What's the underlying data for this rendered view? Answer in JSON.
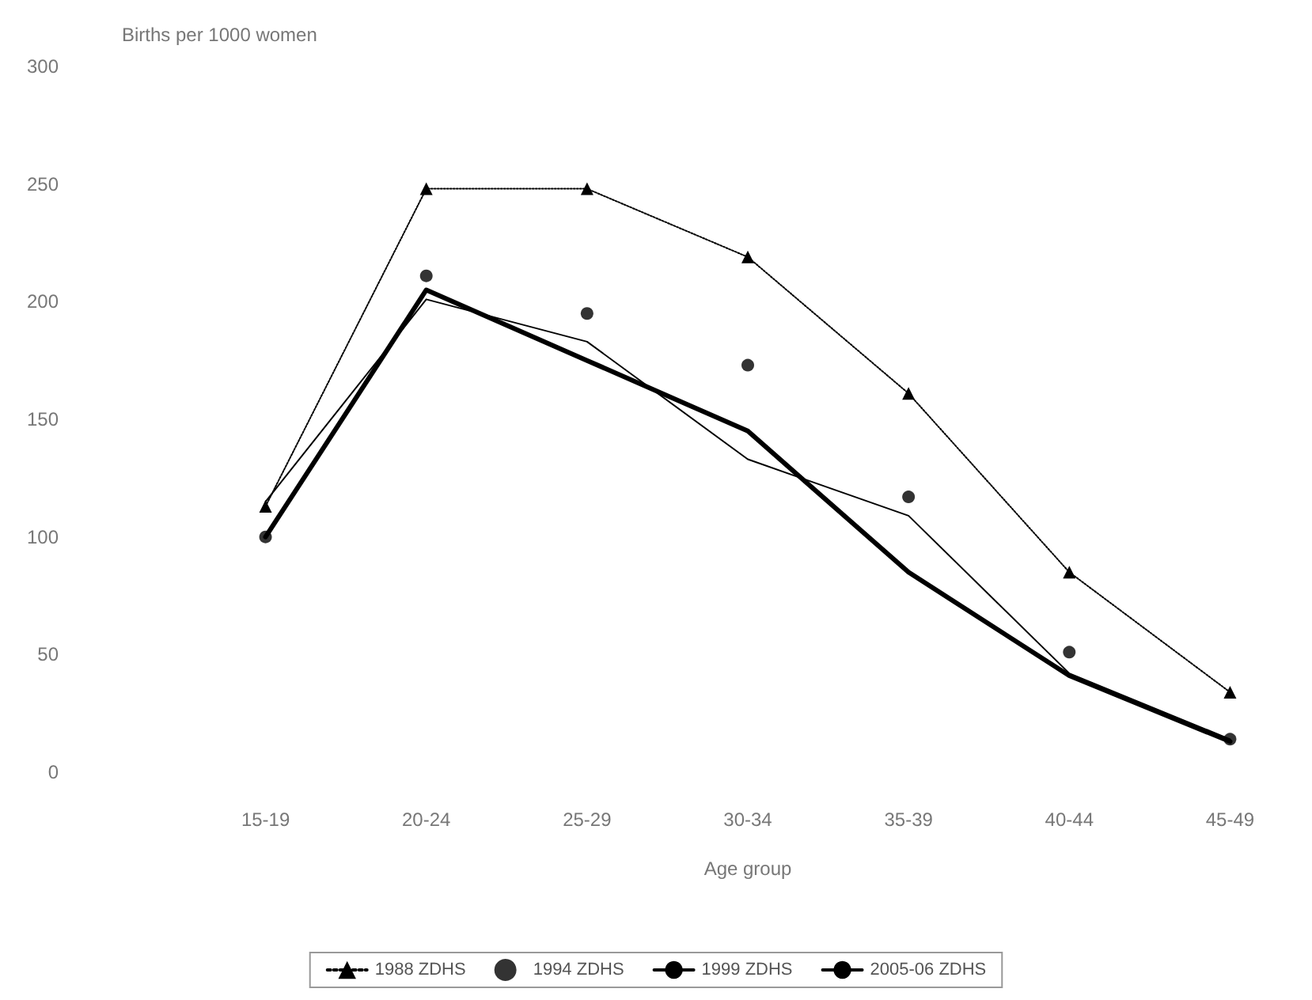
{
  "chart_data": {
    "type": "line",
    "ylabel": "Births per 1000 women",
    "xlabel": "Age group",
    "categories": [
      "15-19",
      "20-24",
      "25-29",
      "30-34",
      "35-39",
      "40-44",
      "45-49"
    ],
    "ylim": [
      0,
      300
    ],
    "yticks": [
      0,
      50,
      100,
      150,
      200,
      250,
      300
    ],
    "grid": false,
    "legend": "bottom",
    "series": [
      {
        "name": "1988 ZDHS",
        "color": "#000000",
        "marker": "triangle",
        "line_style": "dotted",
        "values": [
          113,
          248,
          248,
          219,
          161,
          85,
          34
        ]
      },
      {
        "name": "1994 ZDHS",
        "type": "scatter",
        "color": "#000000",
        "marker": "circle",
        "values": [
          100,
          211,
          195,
          173,
          117,
          51,
          14
        ]
      },
      {
        "name": "1999 ZDHS",
        "color": "#000000",
        "marker": "none",
        "line_style": "solid",
        "values": [
          115,
          201,
          183,
          133,
          109,
          42,
          14
        ]
      },
      {
        "name": "2005-06 ZDHS",
        "color": "#000000",
        "marker": "none",
        "line_style": "solid",
        "values": [
          100,
          205,
          175,
          145,
          85,
          41,
          13
        ]
      }
    ]
  }
}
